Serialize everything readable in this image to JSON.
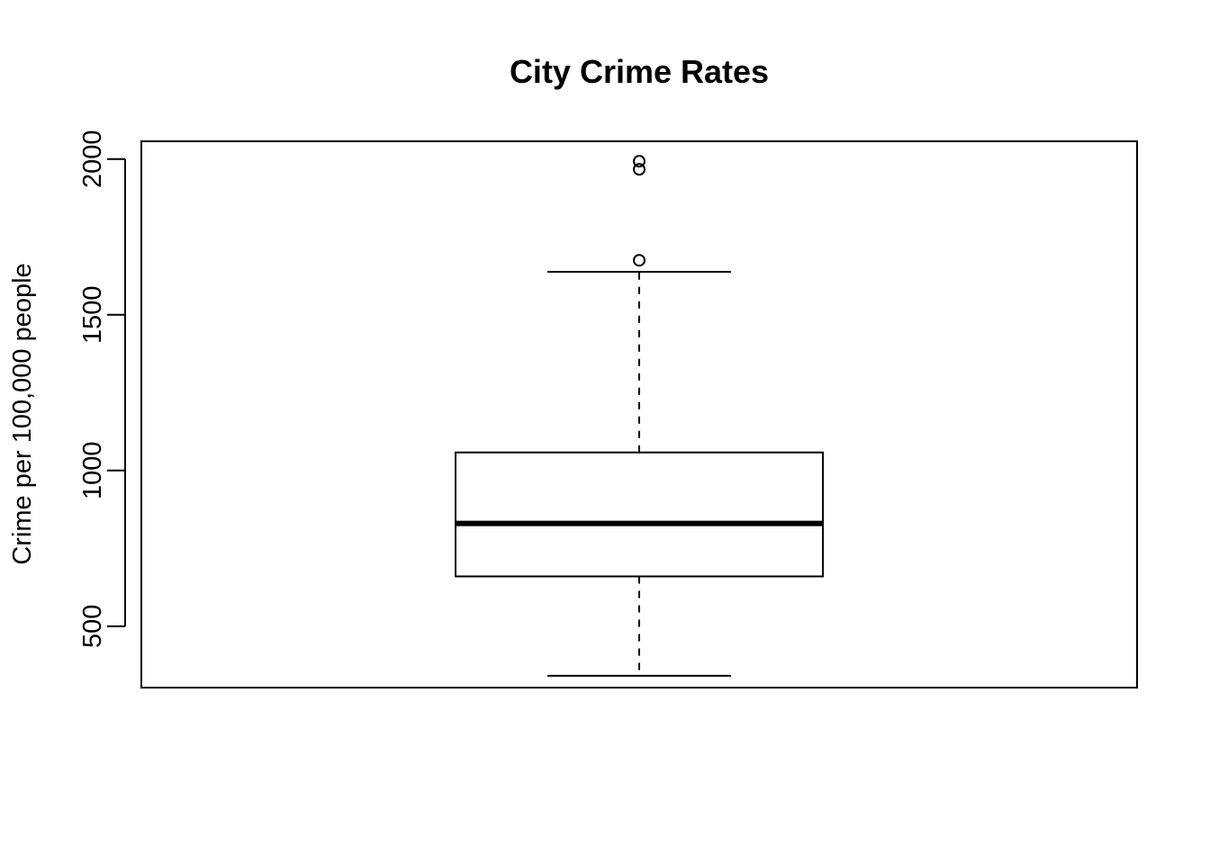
{
  "chart_data": {
    "type": "box",
    "title": "City Crime Rates",
    "xlabel": "",
    "ylabel": "Crime per 100,000 people",
    "ylim": [
      303,
      2057
    ],
    "yticks": [
      500,
      1000,
      1500,
      2000
    ],
    "grid": false,
    "box": {
      "whisker_low": 341,
      "q1": 660,
      "median": 830,
      "q3": 1058,
      "whisker_high": 1638
    },
    "outliers": [
      1675,
      1967,
      1993
    ],
    "colors": {
      "stroke": "#000000",
      "fill": "#ffffff"
    }
  }
}
